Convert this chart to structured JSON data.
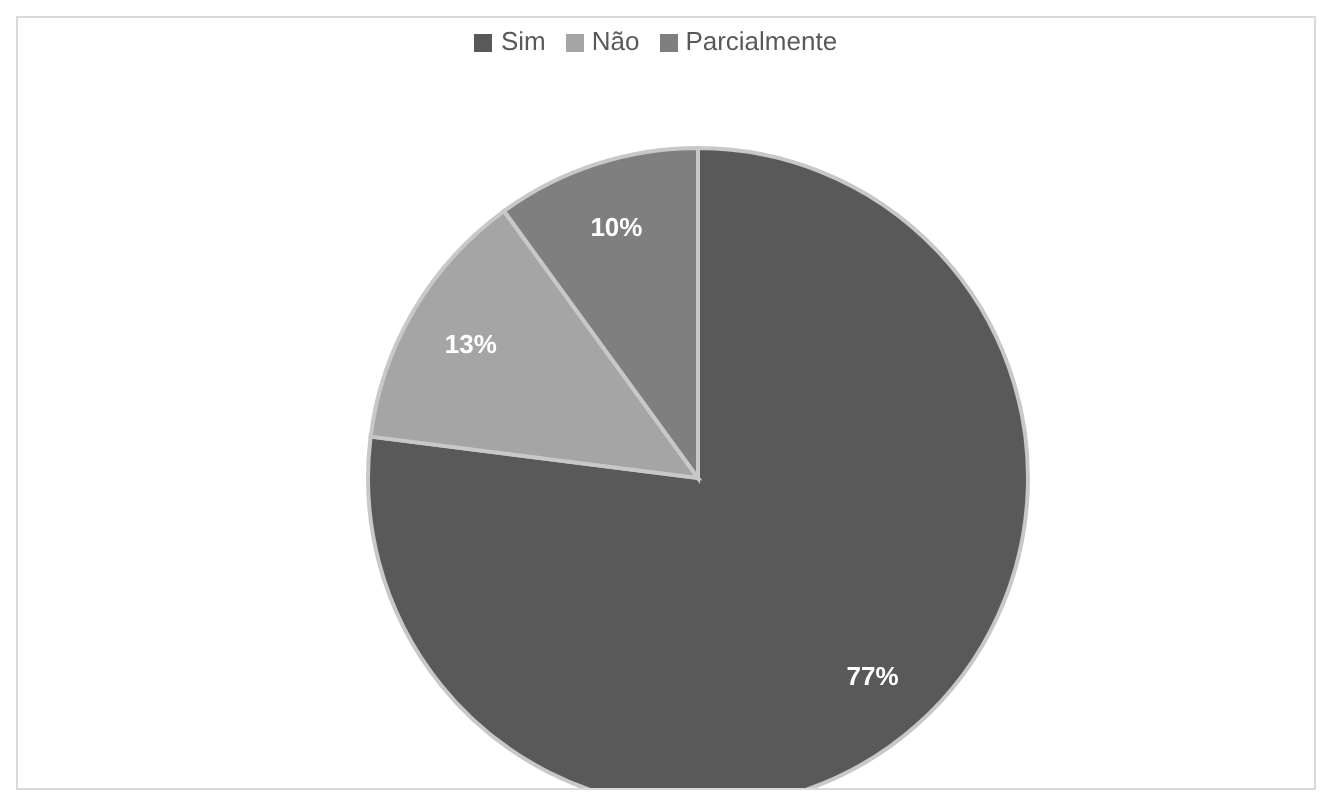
{
  "chart_data": {
    "type": "pie",
    "categories": [
      "Sim",
      "Não",
      "Parcialmente"
    ],
    "values": [
      77,
      13,
      10
    ],
    "colors": [
      "#595959",
      "#a5a5a5",
      "#7f7f7f"
    ],
    "value_labels": [
      "77%",
      "13%",
      "10%"
    ],
    "legend": "top"
  }
}
